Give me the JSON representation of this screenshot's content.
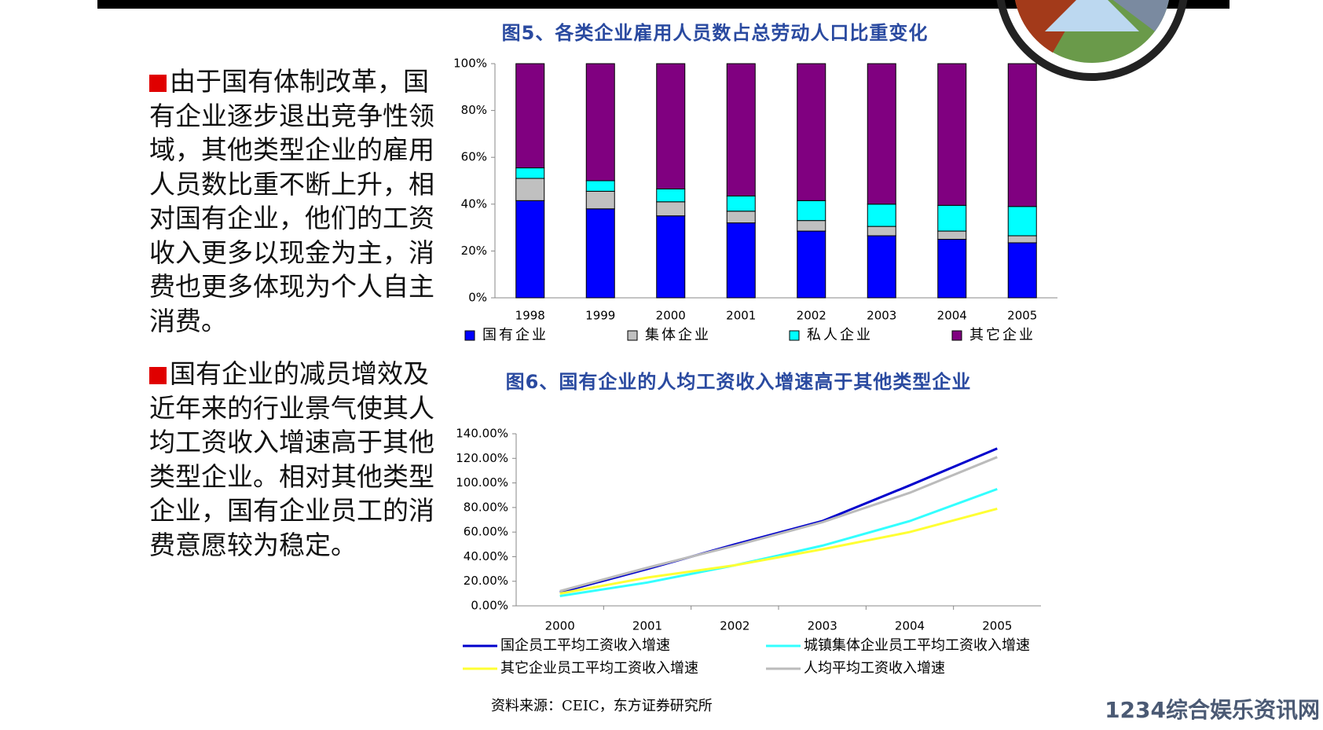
{
  "text": {
    "paragraphs": [
      "由于国有体制改革，国有企业逐步退出竞争性领域，其他类型企业的雇用人员数比重不断上升，相对国有企业，他们的工资收入更多以现金为主，消费也更多体现为个人自主消费。",
      "国有企业的减员增效及近年来的行业景气使其人均工资收入增速高于其他类型企业。相对其他类型企业，国有企业员工的消费意愿较为稳定。"
    ]
  },
  "chart_data": [
    {
      "type": "bar",
      "stacked": true,
      "title": "图5、各类企业雇用人员数占总劳动人口比重变化",
      "categories": [
        "1998",
        "1999",
        "2000",
        "2001",
        "2002",
        "2003",
        "2004",
        "2005"
      ],
      "series": [
        {
          "name": "国有企业",
          "color": "#0000ff",
          "values": [
            41.5,
            38,
            35,
            32,
            28.5,
            26.5,
            25,
            23.5
          ]
        },
        {
          "name": "集体企业",
          "color": "#c0c0c0",
          "values": [
            9.5,
            7.5,
            6,
            5,
            4.5,
            4,
            3.5,
            3
          ]
        },
        {
          "name": "私人企业",
          "color": "#00ffff",
          "values": [
            4.5,
            4.5,
            5.5,
            6.5,
            8.5,
            9.5,
            11,
            12.5
          ]
        },
        {
          "name": "其它企业",
          "color": "#800080",
          "values": [
            44.5,
            50,
            53.5,
            56.5,
            58.5,
            60,
            60.5,
            61
          ]
        }
      ],
      "ylim": [
        0,
        100
      ],
      "yticks": [
        {
          "value": 0,
          "label": "0%"
        },
        {
          "value": 20,
          "label": "20%"
        },
        {
          "value": 40,
          "label": "40%"
        },
        {
          "value": 60,
          "label": "60%"
        },
        {
          "value": 80,
          "label": "80%"
        },
        {
          "value": 100,
          "label": "100%"
        }
      ],
      "legend": "bottom",
      "grid": false
    },
    {
      "type": "line",
      "title": "图6、国有企业的人均工资收入增速高于其他类型企业",
      "categories": [
        "2000",
        "2001",
        "2002",
        "2003",
        "2004",
        "2005"
      ],
      "series": [
        {
          "name": "国企员工平均工资收入增速",
          "color": "#0000cc",
          "values": [
            11,
            30,
            50,
            69,
            98,
            128
          ]
        },
        {
          "name": "城镇集体企业员工平均工资收入增速",
          "color": "#33ffff",
          "values": [
            8,
            19,
            33,
            49,
            69,
            95
          ]
        },
        {
          "name": "其它企业员工平均工资收入增速",
          "color": "#ffff33",
          "values": [
            10,
            23,
            33,
            46,
            60,
            79
          ]
        },
        {
          "name": "人均平均工资收入增速",
          "color": "#bbbbbb",
          "values": [
            12,
            31,
            49,
            68,
            92,
            121
          ]
        }
      ],
      "ylim": [
        0,
        140
      ],
      "yticks": [
        {
          "value": 0,
          "label": "0.00%"
        },
        {
          "value": 20,
          "label": "20.00%"
        },
        {
          "value": 40,
          "label": "40.00%"
        },
        {
          "value": 60,
          "label": "60.00%"
        },
        {
          "value": 80,
          "label": "80.00%"
        },
        {
          "value": 100,
          "label": "100.00%"
        },
        {
          "value": 120,
          "label": "120.00%"
        },
        {
          "value": 140,
          "label": "140.00%"
        }
      ],
      "legend": "bottom",
      "grid": false
    }
  ],
  "source": "资料来源：CEIC，东方证券研究所",
  "watermark": "1234综合娱乐资讯网"
}
